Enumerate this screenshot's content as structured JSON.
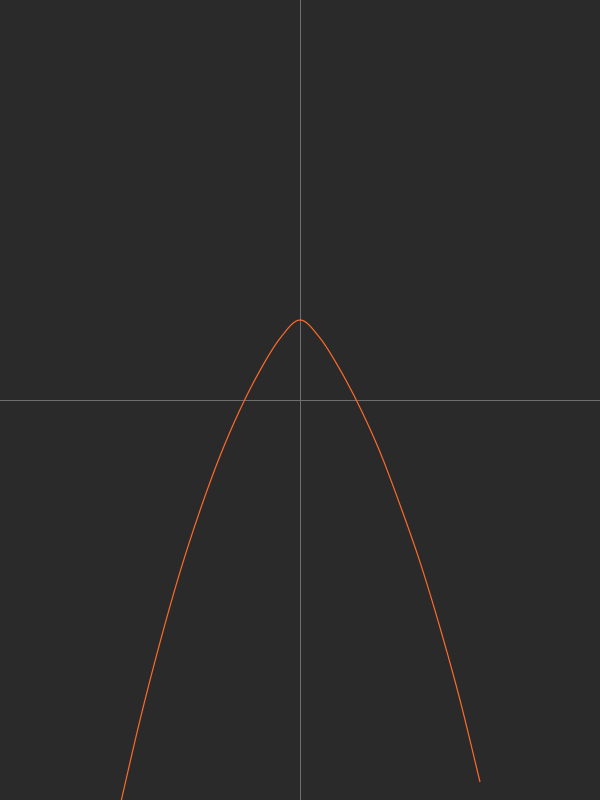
{
  "colors": {
    "background": "#2a2a2a",
    "axes": "#6e6e6e",
    "curve": "#ff6a2b"
  },
  "chart_data": {
    "type": "line",
    "title": "",
    "xlabel": "",
    "ylabel": "",
    "grid": false,
    "legend": "none",
    "xlim": [
      -7.5,
      7.5
    ],
    "ylim": [
      -10,
      10
    ],
    "series": [
      {
        "x": [
          -4.5,
          -4.0,
          -3.5,
          -3.0,
          -2.5,
          -2.0,
          -1.5,
          -1.0,
          -0.5,
          0.0,
          0.5,
          1.0,
          1.5,
          2.0,
          2.5,
          3.0,
          3.5,
          4.0,
          4.5
        ],
        "y": [
          -10.15,
          -8.0,
          -6.06,
          -4.3,
          -2.76,
          -1.4,
          -0.24,
          0.74,
          1.54,
          2.0,
          1.55,
          0.76,
          -0.19,
          -1.3,
          -2.62,
          -4.05,
          -5.69,
          -7.5,
          -9.55
        ]
      }
    ]
  }
}
